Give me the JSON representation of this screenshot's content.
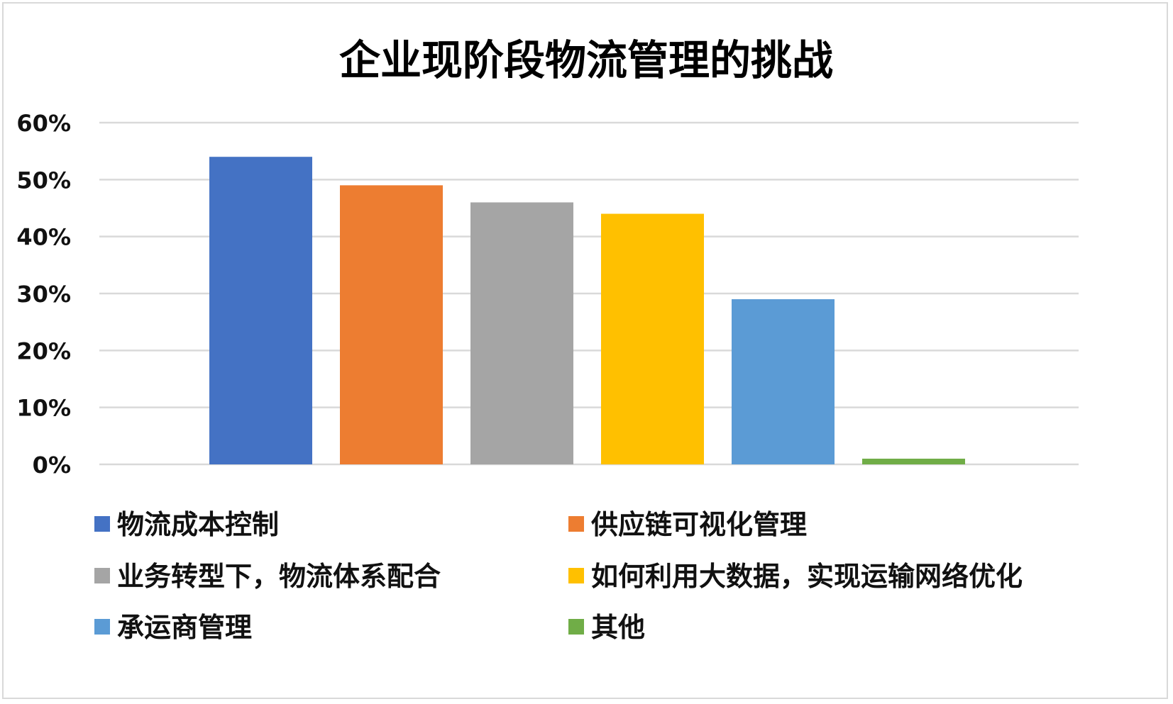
{
  "chart_data": {
    "type": "bar",
    "title": "企业现阶段物流管理的挑战",
    "xlabel": "",
    "ylabel": "",
    "ylim": [
      0,
      0.6
    ],
    "y_ticks": [
      0,
      0.1,
      0.2,
      0.3,
      0.4,
      0.5,
      0.6
    ],
    "y_tick_labels": [
      "0%",
      "10%",
      "20%",
      "30%",
      "40%",
      "50%",
      "60%"
    ],
    "grid": true,
    "legend_position": "bottom",
    "series": [
      {
        "name": "物流成本控制",
        "value": 0.54,
        "color": "#4472C4"
      },
      {
        "name": "供应链可视化管理",
        "value": 0.49,
        "color": "#ED7D31"
      },
      {
        "name": "业务转型下，物流体系配合",
        "value": 0.46,
        "color": "#A5A5A5"
      },
      {
        "name": "如何利用大数据，实现运输网络优化",
        "value": 0.44,
        "color": "#FFC000"
      },
      {
        "name": "承运商管理",
        "value": 0.29,
        "color": "#5B9BD5"
      },
      {
        "name": "其他",
        "value": 0.01,
        "color": "#70AD47"
      }
    ]
  }
}
